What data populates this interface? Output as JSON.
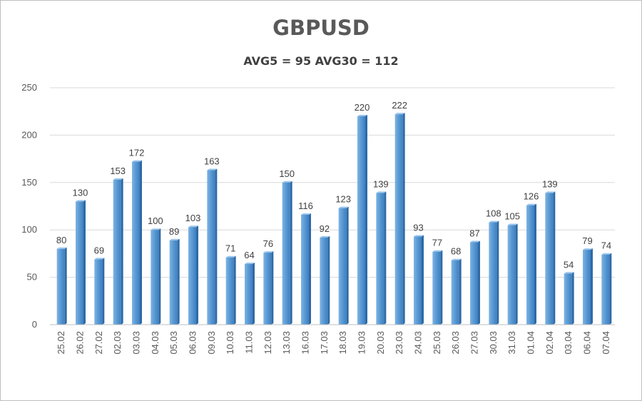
{
  "chart_data": {
    "type": "bar",
    "title": "GBPUSD",
    "subtitle": "AVG5 = 95 AVG30 = 112",
    "xlabel": "",
    "ylabel": "",
    "ylim": [
      0,
      250
    ],
    "yticks": [
      "0",
      "50",
      "100",
      "150",
      "200",
      "250"
    ],
    "grid": true,
    "bar_color": "#5B9BD5",
    "categories": [
      "25.02",
      "26.02",
      "27.02",
      "02.03",
      "03.03",
      "04.03",
      "05.03",
      "06.03",
      "09.03",
      "10.03",
      "11.03",
      "12.03",
      "13.03",
      "16.03",
      "17.03",
      "18.03",
      "19.03",
      "20.03",
      "23.03",
      "24.03",
      "25.03",
      "26.03",
      "27.03",
      "30.03",
      "31.03",
      "01.04",
      "02.04",
      "03.04",
      "06.04",
      "07.04"
    ],
    "values": [
      80,
      130,
      69,
      153,
      172,
      100,
      89,
      103,
      163,
      71,
      64,
      76,
      150,
      116,
      92,
      123,
      220,
      139,
      222,
      93,
      77,
      68,
      87,
      108,
      105,
      126,
      139,
      54,
      79,
      74
    ]
  }
}
